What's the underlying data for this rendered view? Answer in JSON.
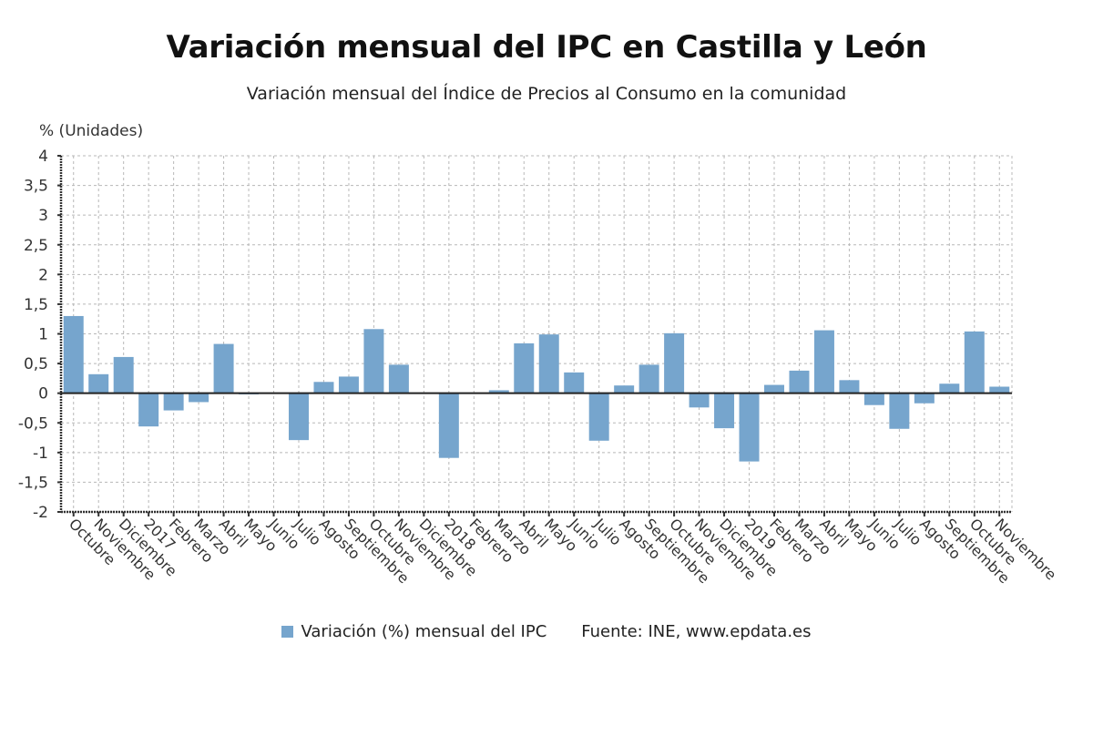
{
  "chart_data": {
    "type": "bar",
    "title": "Variación mensual del IPC en Castilla y León",
    "subtitle": "Variación mensual del Índice de Precios al Consumo en la comunidad",
    "ylabel": "% (Unidades)",
    "xlabel": "",
    "ylim": [
      -2,
      4
    ],
    "yticks": [
      4,
      3.5,
      3,
      2.5,
      2,
      1.5,
      1,
      0.5,
      0,
      -0.5,
      -1,
      -1.5,
      -2
    ],
    "ytick_labels": [
      "4",
      "3,5",
      "3",
      "2,5",
      "2",
      "1,5",
      "1",
      "0,5",
      "0",
      "-0,5",
      "-1",
      "-1,5",
      "-2"
    ],
    "grid": true,
    "legend_position": "bottom",
    "categories": [
      "Octubre",
      "Noviembre",
      "Diciembre",
      "2017",
      "Febrero",
      "Marzo",
      "Abril",
      "Mayo",
      "Junio",
      "Julio",
      "Agosto",
      "Septiembre",
      "Octubre",
      "Noviembre",
      "Diciembre",
      "2018",
      "Febrero",
      "Marzo",
      "Abril",
      "Mayo",
      "Junio",
      "Julio",
      "Agosto",
      "Septiembre",
      "Octubre",
      "Noviembre",
      "Diciembre",
      "2019",
      "Febrero",
      "Marzo",
      "Abril",
      "Mayo",
      "Junio",
      "Julio",
      "Agosto",
      "Septiembre",
      "Octubre",
      "Noviembre"
    ],
    "series": [
      {
        "name": "Variación (%) mensual del IPC",
        "color": "#76a5cd",
        "values": [
          1.3,
          0.32,
          0.61,
          -0.56,
          -0.29,
          -0.15,
          0.83,
          -0.02,
          0.01,
          -0.79,
          0.19,
          0.28,
          1.08,
          0.48,
          0.0,
          -1.09,
          -0.01,
          0.05,
          0.84,
          0.99,
          0.35,
          -0.8,
          0.13,
          0.48,
          1.01,
          -0.24,
          -0.59,
          -1.15,
          0.14,
          0.38,
          1.06,
          0.22,
          -0.2,
          -0.6,
          -0.17,
          0.16,
          1.04,
          0.11
        ]
      }
    ]
  },
  "legend": {
    "series_label": "Variación (%) mensual del IPC",
    "source": "Fuente: INE, www.epdata.es"
  },
  "colors": {
    "bar": "#76a5cd",
    "grid": "#b8b8b8",
    "axis": "#333333",
    "zero_line": "#222222"
  }
}
